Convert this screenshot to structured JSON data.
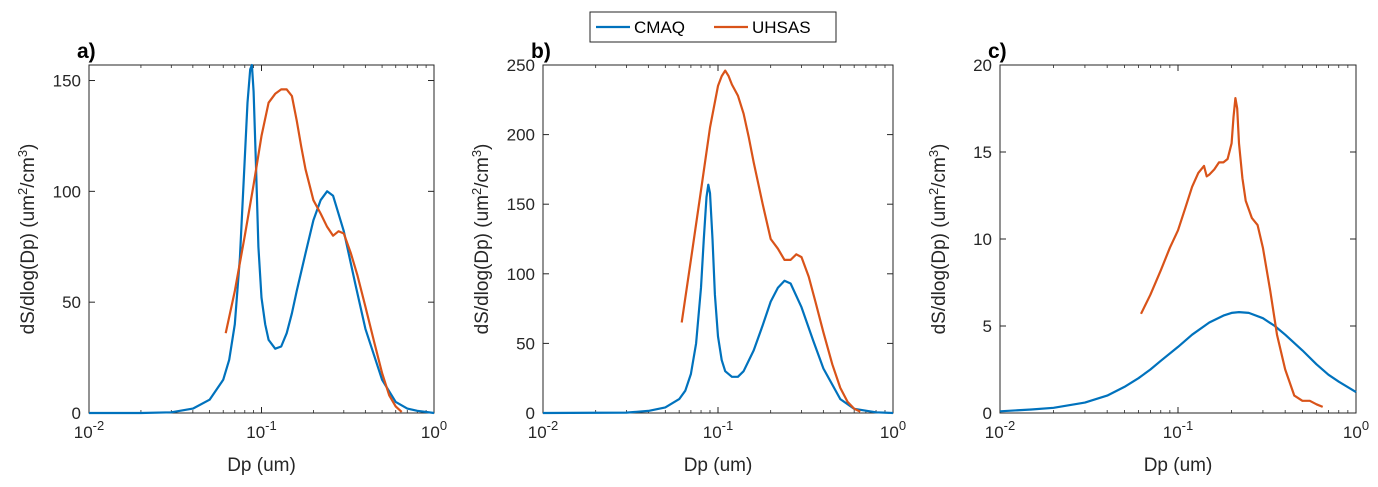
{
  "legend": {
    "entries": [
      {
        "name": "CMAQ",
        "color": "#0072BD"
      },
      {
        "name": "UHSAS",
        "color": "#D95319"
      }
    ]
  },
  "chart_data": [
    {
      "type": "line",
      "panel_label": "a)",
      "xlabel": "Dp (um)",
      "ylabel": "dS/dlog(Dp) (um²/cm³)",
      "xscale": "log",
      "xlim": [
        0.01,
        1
      ],
      "ylim": [
        0,
        157
      ],
      "xticks": [
        0.01,
        0.1,
        1
      ],
      "xtick_labels": [
        {
          "base": "10",
          "exp": "-2"
        },
        {
          "base": "10",
          "exp": "-1"
        },
        {
          "base": "10",
          "exp": "0"
        }
      ],
      "yticks": [
        0,
        50,
        100,
        150
      ],
      "ytick_labels": [
        "0",
        "50",
        "100",
        "150"
      ],
      "series": [
        {
          "name": "CMAQ",
          "color": "#0072BD",
          "x": [
            0.01,
            0.02,
            0.03,
            0.04,
            0.05,
            0.06,
            0.065,
            0.07,
            0.075,
            0.08,
            0.083,
            0.086,
            0.088,
            0.09,
            0.093,
            0.096,
            0.1,
            0.105,
            0.11,
            0.12,
            0.13,
            0.14,
            0.15,
            0.16,
            0.18,
            0.2,
            0.22,
            0.24,
            0.26,
            0.3,
            0.35,
            0.4,
            0.5,
            0.6,
            0.7,
            0.8,
            1.0
          ],
          "y": [
            0,
            0,
            0.3,
            2,
            6,
            15,
            24,
            40,
            70,
            115,
            140,
            155,
            157,
            145,
            110,
            75,
            52,
            40,
            33,
            29,
            30,
            36,
            45,
            55,
            72,
            87,
            96,
            100,
            98,
            82,
            58,
            38,
            15,
            5,
            2,
            1,
            0
          ]
        },
        {
          "name": "UHSAS",
          "color": "#D95319",
          "x": [
            0.062,
            0.07,
            0.08,
            0.09,
            0.1,
            0.11,
            0.12,
            0.13,
            0.14,
            0.15,
            0.16,
            0.17,
            0.18,
            0.2,
            0.22,
            0.24,
            0.26,
            0.28,
            0.3,
            0.33,
            0.36,
            0.4,
            0.45,
            0.5,
            0.55,
            0.6,
            0.65
          ],
          "y": [
            36,
            55,
            80,
            103,
            125,
            140,
            144,
            146,
            146,
            143,
            132,
            120,
            110,
            96,
            90,
            84,
            80,
            82,
            81,
            72,
            62,
            48,
            32,
            18,
            8,
            3,
            0.5
          ]
        }
      ]
    },
    {
      "type": "line",
      "panel_label": "b)",
      "xlabel": "Dp (um)",
      "ylabel": "dS/dlog(Dp) (um²/cm³)",
      "xscale": "log",
      "xlim": [
        0.01,
        1
      ],
      "ylim": [
        0,
        250
      ],
      "xticks": [
        0.01,
        0.1,
        1
      ],
      "xtick_labels": [
        {
          "base": "10",
          "exp": "-2"
        },
        {
          "base": "10",
          "exp": "-1"
        },
        {
          "base": "10",
          "exp": "0"
        }
      ],
      "yticks": [
        0,
        50,
        100,
        150,
        200,
        250
      ],
      "ytick_labels": [
        "0",
        "50",
        "100",
        "150",
        "200",
        "250"
      ],
      "series": [
        {
          "name": "CMAQ",
          "color": "#0072BD",
          "x": [
            0.01,
            0.03,
            0.04,
            0.05,
            0.06,
            0.065,
            0.07,
            0.075,
            0.08,
            0.083,
            0.086,
            0.088,
            0.09,
            0.093,
            0.096,
            0.1,
            0.105,
            0.11,
            0.12,
            0.13,
            0.14,
            0.16,
            0.18,
            0.2,
            0.22,
            0.24,
            0.26,
            0.3,
            0.35,
            0.4,
            0.5,
            0.6,
            0.8,
            1.0
          ],
          "y": [
            0,
            0.3,
            1.5,
            4,
            10,
            16,
            28,
            50,
            90,
            125,
            155,
            164,
            158,
            125,
            85,
            55,
            38,
            30,
            26,
            26,
            30,
            45,
            63,
            80,
            90,
            95,
            93,
            76,
            52,
            32,
            10,
            3,
            0.5,
            0
          ]
        },
        {
          "name": "UHSAS",
          "color": "#D95319",
          "x": [
            0.062,
            0.07,
            0.08,
            0.09,
            0.1,
            0.105,
            0.11,
            0.115,
            0.12,
            0.13,
            0.14,
            0.15,
            0.16,
            0.18,
            0.2,
            0.22,
            0.24,
            0.26,
            0.28,
            0.3,
            0.33,
            0.36,
            0.4,
            0.45,
            0.5,
            0.55,
            0.6,
            0.65
          ],
          "y": [
            65,
            110,
            160,
            205,
            235,
            242,
            246,
            242,
            236,
            228,
            215,
            198,
            180,
            150,
            125,
            118,
            110,
            110,
            114,
            112,
            98,
            80,
            58,
            35,
            18,
            8,
            3,
            1
          ]
        }
      ]
    },
    {
      "type": "line",
      "panel_label": "c)",
      "xlabel": "Dp (um)",
      "ylabel": "dS/dlog(Dp) (um²/cm³)",
      "xscale": "log",
      "xlim": [
        0.01,
        1
      ],
      "ylim": [
        0,
        20
      ],
      "xticks": [
        0.01,
        0.1,
        1
      ],
      "xtick_labels": [
        {
          "base": "10",
          "exp": "-2"
        },
        {
          "base": "10",
          "exp": "-1"
        },
        {
          "base": "10",
          "exp": "0"
        }
      ],
      "yticks": [
        0,
        5,
        10,
        15,
        20
      ],
      "ytick_labels": [
        "0",
        "5",
        "10",
        "15",
        "20"
      ],
      "series": [
        {
          "name": "CMAQ",
          "color": "#0072BD",
          "x": [
            0.01,
            0.015,
            0.02,
            0.03,
            0.04,
            0.05,
            0.06,
            0.07,
            0.08,
            0.1,
            0.12,
            0.15,
            0.18,
            0.2,
            0.22,
            0.25,
            0.3,
            0.35,
            0.4,
            0.5,
            0.6,
            0.7,
            0.8,
            1.0
          ],
          "y": [
            0.1,
            0.2,
            0.3,
            0.6,
            1.0,
            1.5,
            2.0,
            2.5,
            3.0,
            3.8,
            4.5,
            5.2,
            5.6,
            5.75,
            5.8,
            5.75,
            5.45,
            5.0,
            4.5,
            3.6,
            2.8,
            2.2,
            1.8,
            1.2
          ]
        },
        {
          "name": "UHSAS",
          "color": "#D95319",
          "x": [
            0.062,
            0.07,
            0.08,
            0.09,
            0.1,
            0.11,
            0.12,
            0.13,
            0.14,
            0.145,
            0.15,
            0.16,
            0.17,
            0.18,
            0.19,
            0.2,
            0.205,
            0.21,
            0.215,
            0.22,
            0.23,
            0.24,
            0.26,
            0.28,
            0.3,
            0.33,
            0.36,
            0.4,
            0.45,
            0.5,
            0.55,
            0.6,
            0.65
          ],
          "y": [
            5.7,
            6.8,
            8.2,
            9.5,
            10.5,
            11.8,
            13.0,
            13.8,
            14.2,
            13.6,
            13.7,
            14.0,
            14.4,
            14.4,
            14.6,
            15.5,
            17.0,
            18.1,
            17.5,
            15.5,
            13.5,
            12.2,
            11.2,
            10.8,
            9.5,
            7.0,
            4.5,
            2.5,
            1.0,
            0.7,
            0.7,
            0.5,
            0.35
          ]
        }
      ]
    }
  ]
}
